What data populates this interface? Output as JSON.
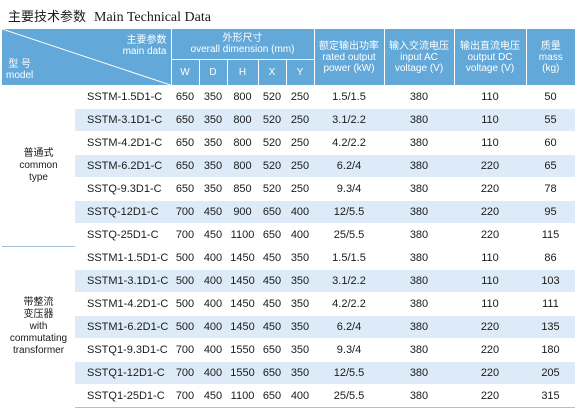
{
  "title_cn": "主要技术参数",
  "title_en": "Main Technical Data",
  "header": {
    "model_cn": "型  号",
    "model_en": "model",
    "main_cn": "主要参数",
    "main_en": "main data",
    "dim_cn": "外形尺寸",
    "dim_en": "overall dimension (mm)",
    "dims": [
      "W",
      "D",
      "H",
      "X",
      "Y"
    ],
    "power_cn": "额定输出功率",
    "power_en1": "rated output",
    "power_en2": "power (kW)",
    "vin_cn": "输入交流电压",
    "vin_en1": "input AC",
    "vin_en2": "voltage (V)",
    "vout_cn": "输出直流电压",
    "vout_en1": "output DC",
    "vout_en2": "voltage (V)",
    "mass_cn": "质量",
    "mass_en1": "mass",
    "mass_en2": "(kg)"
  },
  "groups": [
    {
      "label_lines": [
        "普通式",
        "common",
        "type"
      ],
      "rows": [
        {
          "name": "SSTM-1.5D1-C",
          "W": "650",
          "D": "350",
          "H": "800",
          "X": "520",
          "Y": "250",
          "power": "1.5/1.5",
          "vin": "380",
          "vout": "110",
          "mass": "50"
        },
        {
          "name": "SSTM-3.1D1-C",
          "W": "650",
          "D": "350",
          "H": "800",
          "X": "520",
          "Y": "250",
          "power": "3.1/2.2",
          "vin": "380",
          "vout": "110",
          "mass": "55"
        },
        {
          "name": "SSTM-4.2D1-C",
          "W": "650",
          "D": "350",
          "H": "800",
          "X": "520",
          "Y": "250",
          "power": "4.2/2.2",
          "vin": "380",
          "vout": "110",
          "mass": "60"
        },
        {
          "name": "SSTM-6.2D1-C",
          "W": "650",
          "D": "350",
          "H": "800",
          "X": "520",
          "Y": "250",
          "power": "6.2/4",
          "vin": "380",
          "vout": "220",
          "mass": "65"
        },
        {
          "name": "SSTQ-9.3D1-C",
          "W": "650",
          "D": "350",
          "H": "850",
          "X": "520",
          "Y": "250",
          "power": "9.3/4",
          "vin": "380",
          "vout": "220",
          "mass": "78"
        },
        {
          "name": "SSTQ-12D1-C",
          "W": "700",
          "D": "450",
          "H": "900",
          "X": "650",
          "Y": "400",
          "power": "12/5.5",
          "vin": "380",
          "vout": "220",
          "mass": "95"
        },
        {
          "name": "SSTQ-25D1-C",
          "W": "700",
          "D": "450",
          "H": "1100",
          "X": "650",
          "Y": "400",
          "power": "25/5.5",
          "vin": "380",
          "vout": "220",
          "mass": "115"
        }
      ]
    },
    {
      "label_lines": [
        "带整流",
        "变压器",
        "with",
        "commutating",
        "transformer"
      ],
      "rows": [
        {
          "name": "SSTM1-1.5D1-C",
          "W": "500",
          "D": "400",
          "H": "1450",
          "X": "450",
          "Y": "350",
          "power": "1.5/1.5",
          "vin": "380",
          "vout": "110",
          "mass": "86"
        },
        {
          "name": "SSTM1-3.1D1-C",
          "W": "500",
          "D": "400",
          "H": "1450",
          "X": "450",
          "Y": "350",
          "power": "3.1/2.2",
          "vin": "380",
          "vout": "110",
          "mass": "103"
        },
        {
          "name": "SSTM1-4.2D1-C",
          "W": "500",
          "D": "400",
          "H": "1450",
          "X": "450",
          "Y": "350",
          "power": "4.2/2.2",
          "vin": "380",
          "vout": "110",
          "mass": "111"
        },
        {
          "name": "SSTM1-6.2D1-C",
          "W": "500",
          "D": "400",
          "H": "1450",
          "X": "450",
          "Y": "350",
          "power": "6.2/4",
          "vin": "380",
          "vout": "220",
          "mass": "135"
        },
        {
          "name": "SSTQ1-9.3D1-C",
          "W": "700",
          "D": "400",
          "H": "1550",
          "X": "650",
          "Y": "350",
          "power": "9.3/4",
          "vin": "380",
          "vout": "220",
          "mass": "180"
        },
        {
          "name": "SSTQ1-12D1-C",
          "W": "700",
          "D": "400",
          "H": "1550",
          "X": "650",
          "Y": "350",
          "power": "12/5.5",
          "vin": "380",
          "vout": "220",
          "mass": "205"
        },
        {
          "name": "SSTQ1-25D1-C",
          "W": "700",
          "D": "450",
          "H": "1100",
          "X": "650",
          "Y": "400",
          "power": "25/5.5",
          "vin": "380",
          "vout": "220",
          "mass": "315"
        }
      ]
    }
  ]
}
